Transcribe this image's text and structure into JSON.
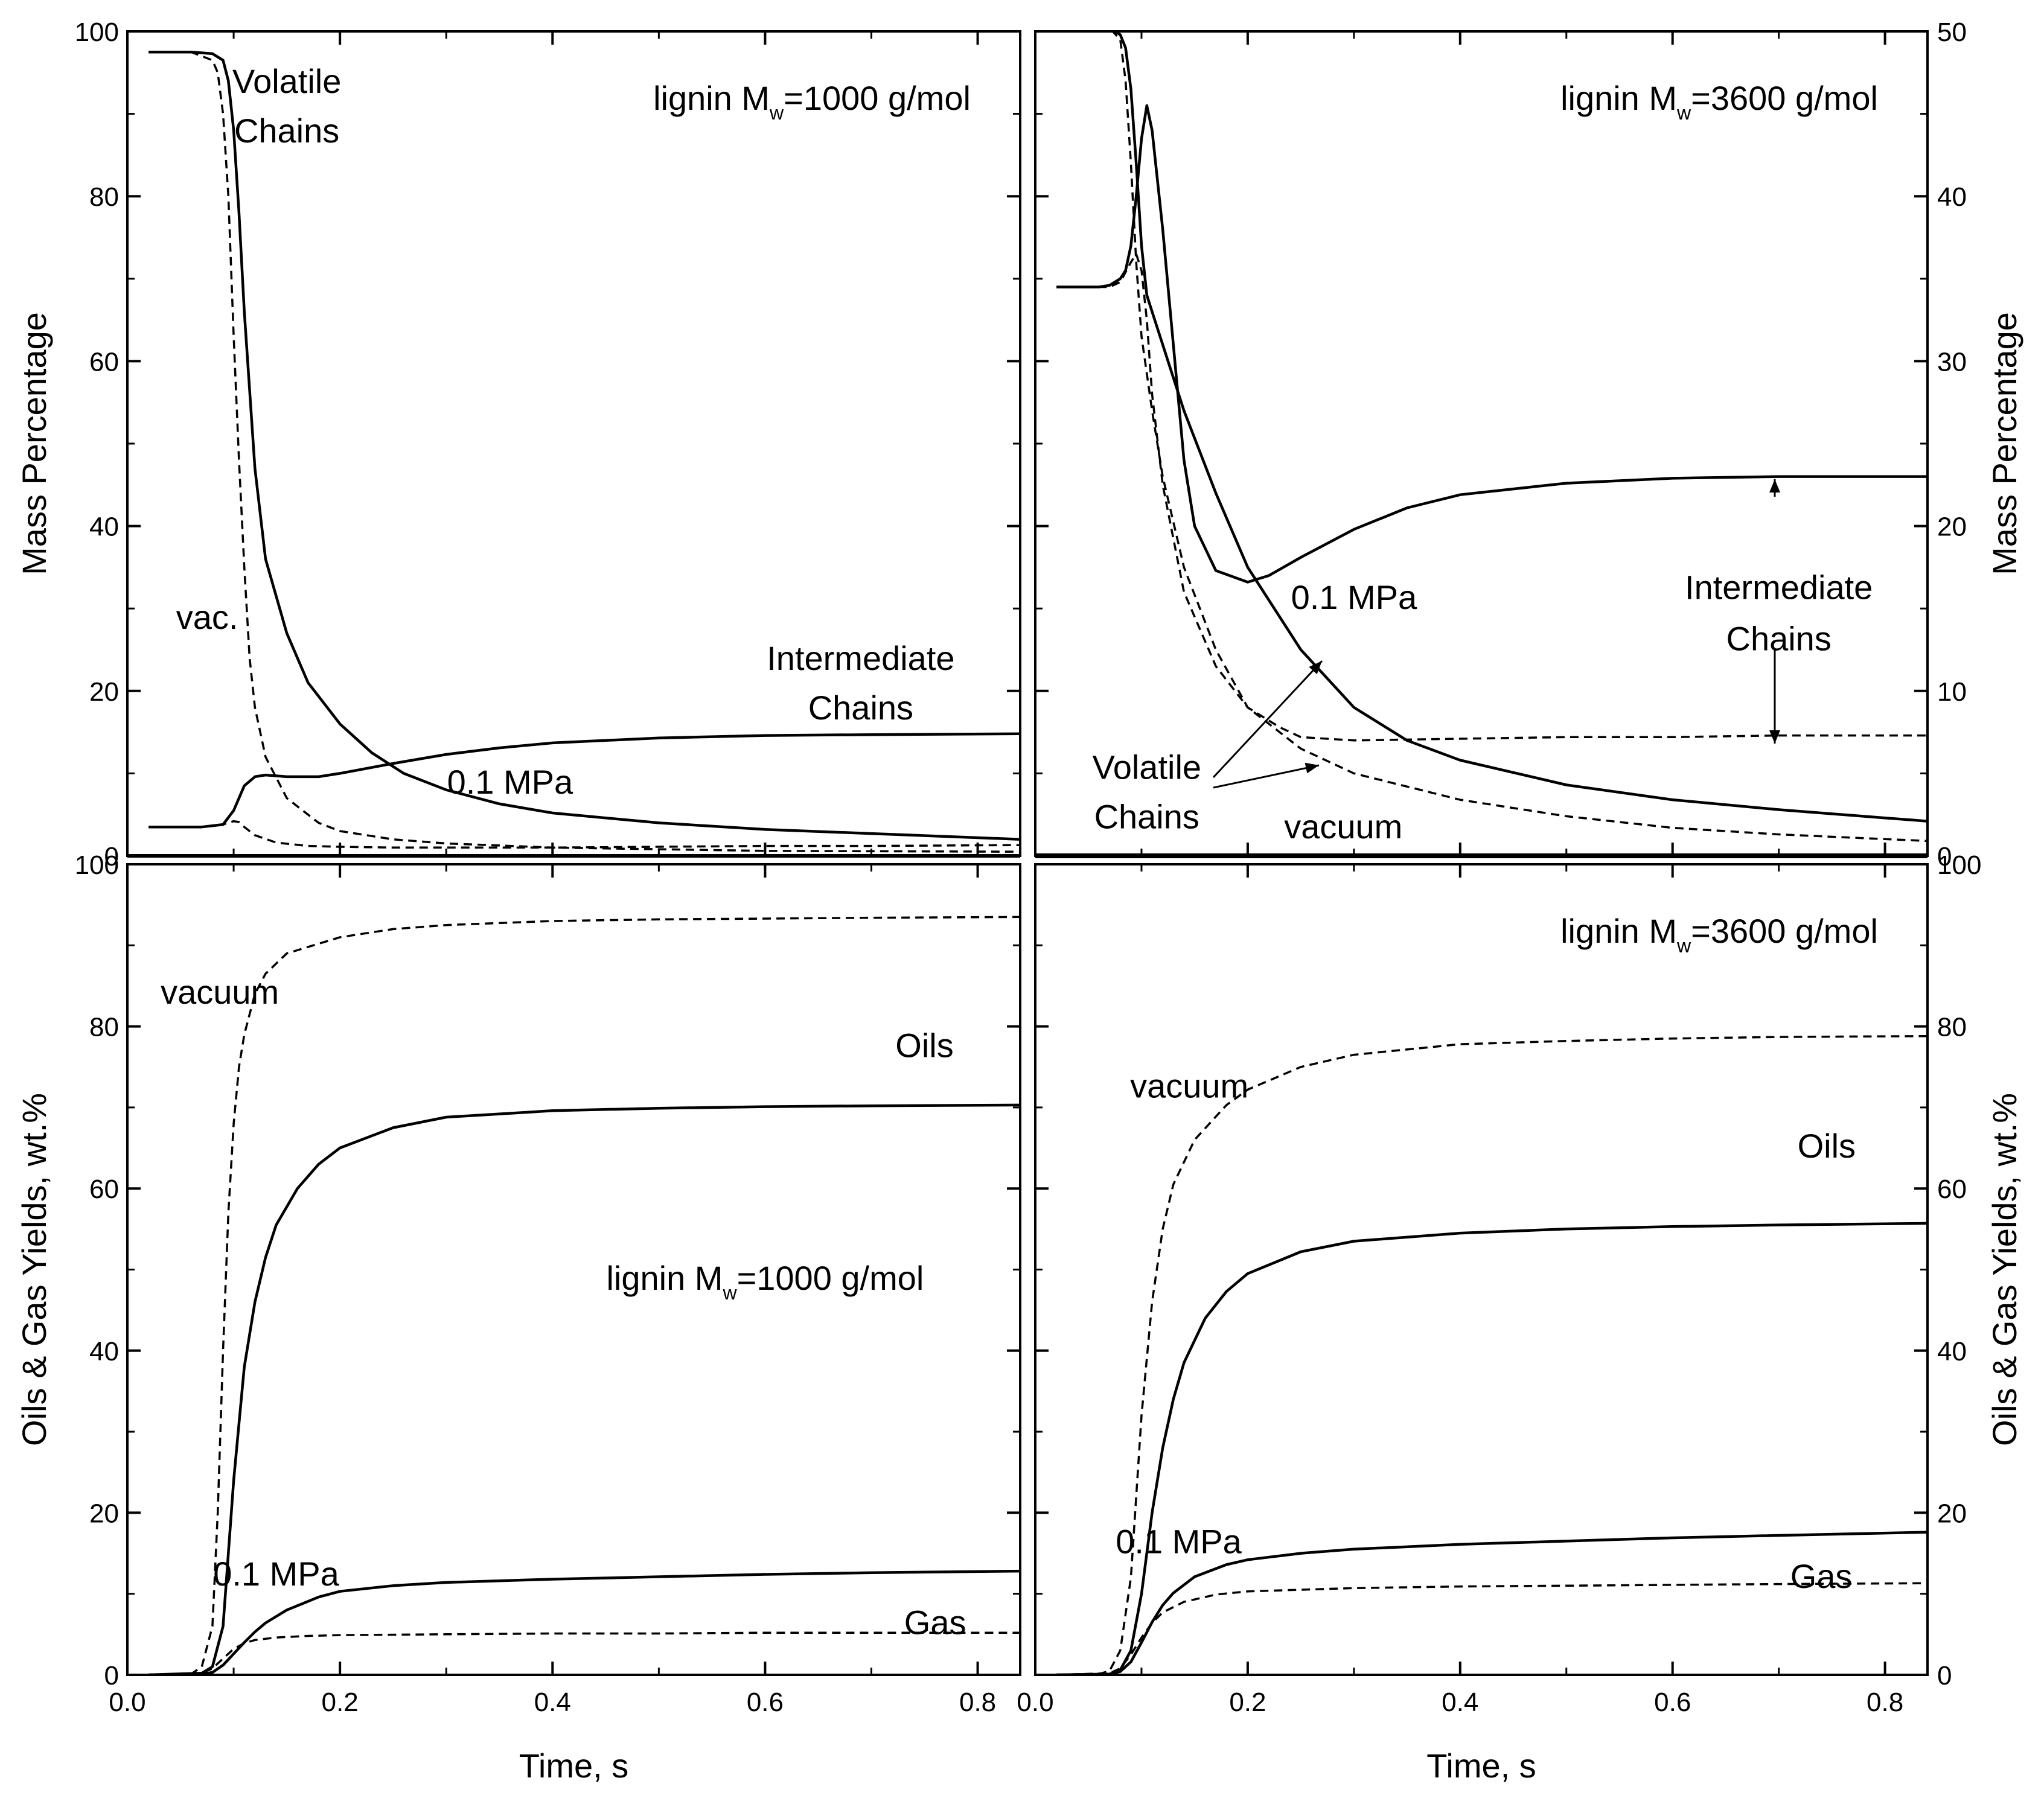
{
  "chart_data": [
    {
      "id": "tl",
      "type": "line",
      "xlim": [
        0.0,
        0.84
      ],
      "ylim": [
        0,
        100
      ],
      "x_ticks": [
        0.0,
        0.2,
        0.4,
        0.6,
        0.8
      ],
      "x_tick_labels": [],
      "y_ticks": [
        0,
        20,
        40,
        60,
        80,
        100
      ],
      "y_tick_labels": [
        "0",
        "20",
        "40",
        "60",
        "80",
        "100"
      ],
      "y_tick_side": "left",
      "ylabel": "Mass Percentage",
      "xlabel": "",
      "title_prefix": "lignin M",
      "title_sub": "w",
      "title_suffix": "=1000 g/mol",
      "annotations": [
        {
          "text": "Volatile",
          "x": 0.15,
          "y": 94
        },
        {
          "text": "Chains",
          "x": 0.15,
          "y": 88
        },
        {
          "text": "vac.",
          "x": 0.075,
          "y": 29
        },
        {
          "text": "Intermediate",
          "x": 0.69,
          "y": 24
        },
        {
          "text": "Chains",
          "x": 0.69,
          "y": 18
        },
        {
          "text": "0.1 MPa",
          "x": 0.36,
          "y": 9
        }
      ],
      "series": [
        {
          "name": "Volatile Chains 0.1 MPa",
          "style": "solid",
          "x": [
            0.02,
            0.06,
            0.08,
            0.09,
            0.095,
            0.1,
            0.105,
            0.11,
            0.12,
            0.13,
            0.15,
            0.17,
            0.2,
            0.23,
            0.26,
            0.3,
            0.35,
            0.4,
            0.5,
            0.6,
            0.7,
            0.84
          ],
          "y": [
            97.5,
            97.5,
            97.3,
            96.5,
            94,
            88,
            78,
            66,
            47,
            36,
            27,
            21,
            16,
            12.5,
            10,
            8,
            6.3,
            5.2,
            4,
            3.2,
            2.7,
            2
          ]
        },
        {
          "name": "Volatile Chains vacuum",
          "style": "dashed",
          "x": [
            0.02,
            0.06,
            0.08,
            0.085,
            0.09,
            0.095,
            0.1,
            0.105,
            0.11,
            0.115,
            0.12,
            0.13,
            0.15,
            0.18,
            0.2,
            0.25,
            0.3,
            0.4,
            0.5,
            0.6,
            0.84
          ],
          "y": [
            97.5,
            97.5,
            96.5,
            95,
            90,
            80,
            63,
            48,
            35,
            24,
            18,
            12,
            7,
            4,
            3,
            2,
            1.5,
            1,
            0.8,
            0.6,
            0.5
          ]
        },
        {
          "name": "Intermediate Chains 0.1 MPa",
          "style": "solid",
          "x": [
            0.02,
            0.07,
            0.09,
            0.1,
            0.11,
            0.12,
            0.13,
            0.15,
            0.18,
            0.2,
            0.25,
            0.3,
            0.35,
            0.4,
            0.5,
            0.6,
            0.7,
            0.84
          ],
          "y": [
            3.5,
            3.5,
            3.8,
            5.5,
            8.5,
            9.6,
            9.8,
            9.6,
            9.6,
            10,
            11.2,
            12.3,
            13.1,
            13.7,
            14.3,
            14.6,
            14.7,
            14.8
          ]
        },
        {
          "name": "Intermediate Chains vacuum",
          "style": "dashed",
          "x": [
            0.02,
            0.07,
            0.09,
            0.1,
            0.105,
            0.11,
            0.12,
            0.14,
            0.17,
            0.2,
            0.25,
            0.3,
            0.4,
            0.5,
            0.6,
            0.7,
            0.84
          ],
          "y": [
            3.5,
            3.5,
            3.8,
            4.2,
            4.1,
            3.5,
            2.5,
            1.6,
            1.2,
            1.1,
            1,
            1,
            1,
            1.1,
            1.2,
            1.2,
            1.3
          ]
        }
      ]
    },
    {
      "id": "tr",
      "type": "line",
      "xlim": [
        0.0,
        0.84
      ],
      "ylim": [
        0,
        50
      ],
      "x_ticks": [
        0.0,
        0.2,
        0.4,
        0.6,
        0.8
      ],
      "x_tick_labels": [],
      "y_ticks": [
        0,
        10,
        20,
        30,
        40,
        50
      ],
      "y_tick_labels": [
        "0",
        "10",
        "20",
        "30",
        "40",
        "50"
      ],
      "y_tick_side": "right",
      "ylabel": "Mass Percentage",
      "xlabel": "",
      "title_prefix": "lignin M",
      "title_sub": "w",
      "title_suffix": "=3600 g/mol",
      "annotations": [
        {
          "text": "0.1 MPa",
          "x": 0.3,
          "y": 15.7
        },
        {
          "text": "Intermediate",
          "x": 0.7,
          "y": 16.3
        },
        {
          "text": "Chains",
          "x": 0.7,
          "y": 13.2
        },
        {
          "text": "Volatile",
          "x": 0.105,
          "y": 5.4
        },
        {
          "text": "Chains",
          "x": 0.105,
          "y": 2.4
        },
        {
          "text": "vacuum",
          "x": 0.29,
          "y": 1.8
        }
      ],
      "series": [
        {
          "name": "Volatile Chains 0.1 MPa",
          "style": "solid",
          "x": [
            0.02,
            0.07,
            0.08,
            0.085,
            0.09,
            0.095,
            0.1,
            0.105,
            0.11,
            0.12,
            0.14,
            0.17,
            0.2,
            0.25,
            0.3,
            0.35,
            0.4,
            0.5,
            0.6,
            0.7,
            0.8,
            0.84
          ],
          "y": [
            50.2,
            50.2,
            49.8,
            49,
            46.5,
            42,
            37,
            34,
            33,
            31,
            27,
            22,
            17.5,
            12.5,
            9,
            7,
            5.8,
            4.3,
            3.4,
            2.8,
            2.3,
            2.1
          ]
        },
        {
          "name": "Volatile Chains vacuum",
          "style": "dashed",
          "x": [
            0.02,
            0.07,
            0.08,
            0.085,
            0.09,
            0.095,
            0.1,
            0.11,
            0.12,
            0.14,
            0.17,
            0.2,
            0.25,
            0.3,
            0.4,
            0.5,
            0.6,
            0.7,
            0.84
          ],
          "y": [
            50.2,
            50.2,
            49.5,
            47,
            42,
            36,
            31.5,
            27,
            23,
            17.5,
            12.5,
            9,
            6.5,
            5,
            3.4,
            2.4,
            1.7,
            1.3,
            0.9
          ]
        },
        {
          "name": "Intermediate Chains 0.1 MPa",
          "style": "solid",
          "x": [
            0.02,
            0.06,
            0.07,
            0.08,
            0.085,
            0.09,
            0.095,
            0.1,
            0.105,
            0.11,
            0.12,
            0.14,
            0.15,
            0.17,
            0.2,
            0.22,
            0.25,
            0.3,
            0.35,
            0.4,
            0.5,
            0.6,
            0.7,
            0.84
          ],
          "y": [
            34.5,
            34.5,
            34.6,
            35,
            35.5,
            37,
            40,
            43.5,
            45.5,
            44,
            38,
            24,
            20,
            17.3,
            16.6,
            17,
            18.1,
            19.8,
            21.1,
            21.9,
            22.6,
            22.9,
            23,
            23
          ]
        },
        {
          "name": "Intermediate Chains vacuum",
          "style": "dashed",
          "x": [
            0.02,
            0.07,
            0.08,
            0.09,
            0.095,
            0.1,
            0.105,
            0.11,
            0.12,
            0.14,
            0.17,
            0.2,
            0.23,
            0.25,
            0.3,
            0.4,
            0.5,
            0.6,
            0.7,
            0.84
          ],
          "y": [
            34.5,
            34.5,
            34.8,
            36,
            36.5,
            35.5,
            32.5,
            28,
            22.5,
            16,
            11.5,
            9,
            7.8,
            7.2,
            7,
            7.1,
            7.2,
            7.2,
            7.3,
            7.3
          ]
        }
      ]
    },
    {
      "id": "bl",
      "type": "line",
      "xlim": [
        0.0,
        0.84
      ],
      "ylim": [
        0,
        100
      ],
      "x_ticks": [
        0.0,
        0.2,
        0.4,
        0.6,
        0.8
      ],
      "x_tick_labels": [
        "0.0",
        "0.2",
        "0.4",
        "0.6",
        "0.8"
      ],
      "y_ticks": [
        0,
        20,
        40,
        60,
        80,
        100
      ],
      "y_tick_labels": [
        "0",
        "20",
        "40",
        "60",
        "80",
        "100"
      ],
      "y_tick_side": "left",
      "ylabel": "Oils & Gas Yields, wt.%",
      "xlabel": "Time, s",
      "title_prefix": "lignin M",
      "title_sub": "w",
      "title_suffix": "=1000 g/mol",
      "title_pos": {
        "x": 0.6,
        "y": 47.5
      },
      "annotations": [
        {
          "text": "vacuum",
          "x": 0.087,
          "y": 84.3
        },
        {
          "text": "Oils",
          "x": 0.75,
          "y": 77.7
        },
        {
          "text": "0.1 MPa",
          "x": 0.14,
          "y": 12.5
        },
        {
          "text": "Gas",
          "x": 0.76,
          "y": 6.5
        }
      ],
      "series": [
        {
          "name": "Oils 0.1 MPa",
          "style": "solid",
          "x": [
            0.02,
            0.07,
            0.08,
            0.09,
            0.1,
            0.11,
            0.12,
            0.13,
            0.14,
            0.16,
            0.18,
            0.2,
            0.25,
            0.3,
            0.4,
            0.5,
            0.6,
            0.7,
            0.84
          ],
          "y": [
            0,
            0.2,
            1,
            6,
            24,
            38,
            46,
            51.5,
            55.5,
            60,
            63,
            65,
            67.5,
            68.8,
            69.6,
            69.9,
            70.1,
            70.2,
            70.3
          ]
        },
        {
          "name": "Oils vacuum",
          "style": "dashed",
          "x": [
            0.02,
            0.06,
            0.07,
            0.08,
            0.085,
            0.09,
            0.095,
            0.1,
            0.105,
            0.11,
            0.12,
            0.13,
            0.15,
            0.2,
            0.25,
            0.3,
            0.4,
            0.5,
            0.6,
            0.7,
            0.84
          ],
          "y": [
            0,
            0.1,
            1,
            6,
            20,
            40,
            57,
            68,
            75,
            79,
            84,
            86.5,
            89,
            91,
            92,
            92.5,
            93,
            93.2,
            93.3,
            93.4,
            93.5
          ]
        },
        {
          "name": "Gas 0.1 MPa",
          "style": "solid",
          "x": [
            0.02,
            0.07,
            0.08,
            0.09,
            0.1,
            0.11,
            0.12,
            0.13,
            0.15,
            0.18,
            0.2,
            0.25,
            0.3,
            0.4,
            0.5,
            0.6,
            0.7,
            0.84
          ],
          "y": [
            0,
            0.1,
            0.3,
            1.2,
            2.6,
            4,
            5.3,
            6.4,
            8,
            9.6,
            10.3,
            11,
            11.4,
            11.8,
            12.1,
            12.4,
            12.6,
            12.8
          ]
        },
        {
          "name": "Gas vacuum",
          "style": "dashed",
          "x": [
            0.02,
            0.07,
            0.08,
            0.09,
            0.1,
            0.11,
            0.12,
            0.14,
            0.17,
            0.2,
            0.3,
            0.4,
            0.5,
            0.6,
            0.7,
            0.84
          ],
          "y": [
            0,
            0.2,
            0.8,
            2,
            3.2,
            3.9,
            4.3,
            4.6,
            4.8,
            4.9,
            5,
            5.1,
            5.1,
            5.2,
            5.2,
            5.2
          ]
        }
      ]
    },
    {
      "id": "br",
      "type": "line",
      "xlim": [
        0.0,
        0.84
      ],
      "ylim": [
        0,
        100
      ],
      "x_ticks": [
        0.0,
        0.2,
        0.4,
        0.6,
        0.8
      ],
      "x_tick_labels": [
        "0.0",
        "0.2",
        "0.4",
        "0.6",
        "0.8"
      ],
      "y_ticks": [
        0,
        20,
        40,
        60,
        80,
        100
      ],
      "y_tick_labels": [
        "0",
        "20",
        "40",
        "60",
        "80",
        "100"
      ],
      "y_tick_side": "right",
      "ylabel": "Oils & Gas Yields, wt.%",
      "xlabel": "Time, s",
      "title_prefix": "lignin M",
      "title_sub": "w",
      "title_suffix": "=3600 g/mol",
      "annotations": [
        {
          "text": "vacuum",
          "x": 0.145,
          "y": 72.7
        },
        {
          "text": "Oils",
          "x": 0.745,
          "y": 65.3
        },
        {
          "text": "0.1 MPa",
          "x": 0.135,
          "y": 16.5
        },
        {
          "text": "Gas",
          "x": 0.74,
          "y": 12.2
        }
      ],
      "series": [
        {
          "name": "Oils 0.1 MPa",
          "style": "solid",
          "x": [
            0.02,
            0.07,
            0.08,
            0.09,
            0.1,
            0.11,
            0.12,
            0.13,
            0.14,
            0.16,
            0.18,
            0.2,
            0.25,
            0.3,
            0.4,
            0.5,
            0.6,
            0.7,
            0.84
          ],
          "y": [
            0,
            0.1,
            0.6,
            3,
            10,
            20,
            28,
            34,
            38.5,
            44,
            47.3,
            49.5,
            52.2,
            53.5,
            54.5,
            55,
            55.3,
            55.5,
            55.7
          ]
        },
        {
          "name": "Oils vacuum",
          "style": "dashed",
          "x": [
            0.02,
            0.06,
            0.07,
            0.08,
            0.09,
            0.095,
            0.1,
            0.11,
            0.12,
            0.13,
            0.15,
            0.18,
            0.2,
            0.25,
            0.3,
            0.4,
            0.5,
            0.6,
            0.7,
            0.84
          ],
          "y": [
            0,
            0.1,
            0.5,
            3,
            12,
            22,
            32,
            46,
            55,
            60.5,
            66,
            70.3,
            72.2,
            75,
            76.5,
            77.8,
            78.2,
            78.5,
            78.7,
            78.8
          ]
        },
        {
          "name": "Gas 0.1 MPa",
          "style": "solid",
          "x": [
            0.02,
            0.07,
            0.08,
            0.09,
            0.1,
            0.11,
            0.12,
            0.13,
            0.15,
            0.18,
            0.2,
            0.25,
            0.3,
            0.4,
            0.5,
            0.6,
            0.7,
            0.84
          ],
          "y": [
            0,
            0.1,
            0.4,
            1.6,
            4,
            6.5,
            8.6,
            10.1,
            12.1,
            13.6,
            14.2,
            15,
            15.5,
            16.1,
            16.5,
            16.9,
            17.2,
            17.6
          ]
        },
        {
          "name": "Gas vacuum",
          "style": "dashed",
          "x": [
            0.02,
            0.07,
            0.08,
            0.09,
            0.1,
            0.11,
            0.12,
            0.14,
            0.17,
            0.2,
            0.3,
            0.4,
            0.5,
            0.6,
            0.7,
            0.84
          ],
          "y": [
            0,
            0.2,
            0.8,
            2.5,
            4.6,
            6.4,
            7.7,
            9,
            9.9,
            10.3,
            10.7,
            10.9,
            11,
            11.1,
            11.2,
            11.3
          ]
        }
      ]
    }
  ],
  "arrow_labels_note": ""
}
